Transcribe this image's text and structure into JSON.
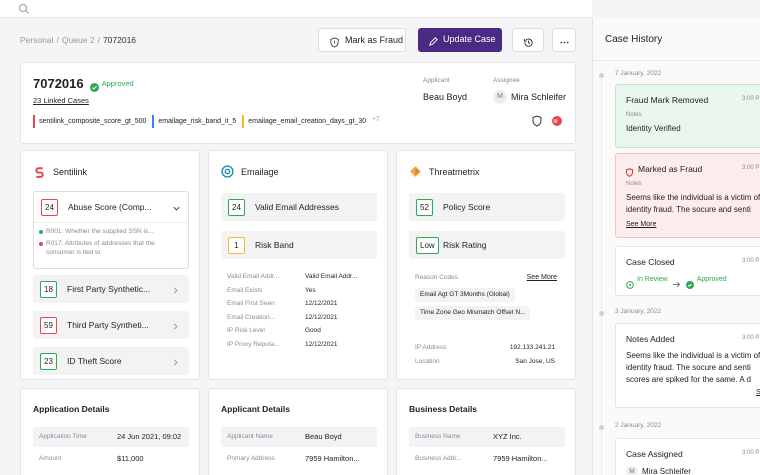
{
  "breadcrumb": {
    "items": [
      "Personal",
      "Queue 2",
      "7072016"
    ],
    "separator": "/"
  },
  "actions": {
    "fraud": "Mark as Fraud",
    "update": "Update Case"
  },
  "case": {
    "id": "7072016",
    "status": "Approved",
    "linked": "23 Linked Cases",
    "applicant_label": "Applicant",
    "applicant": "Beau Boyd",
    "assignee_label": "Assignee",
    "assignee_initial": "M",
    "assignee": "Mira Schleifer",
    "tags": [
      {
        "text": "sentilink_composite_score_gt_500",
        "color": "#e5484d"
      },
      {
        "text": "emailage_risk_band_it_5",
        "color": "#3b82f6"
      },
      {
        "text": "emailage_email_creation_days_gt_30",
        "color": "#f5b82e"
      }
    ],
    "more_tags": "+7"
  },
  "sentilink": {
    "title": "Sentilink",
    "expanded": {
      "score": "24",
      "name": "Abuse Score (Comp...",
      "color": "#e5484d",
      "reasons": [
        {
          "text": "R001: Whether the supplied SSN is...",
          "color": "#2fa84f"
        },
        {
          "text": "R017: Attributes of addresses that the consumer is tied to",
          "color": "#e5484d"
        }
      ]
    },
    "scores": [
      {
        "score": "18",
        "name": "First Party Synthetic...",
        "color": "#2fa84f"
      },
      {
        "score": "59",
        "name": "Third Party Syntheti...",
        "color": "#e5484d"
      },
      {
        "score": "23",
        "name": "ID Theft Score",
        "color": "#2fa84f"
      }
    ]
  },
  "emailage": {
    "title": "Emailage",
    "scores": [
      {
        "score": "24",
        "name": "Valid Email Addresses",
        "color": "#2fa84f"
      },
      {
        "score": "1",
        "name": "Risk Band",
        "color": "#f5b82e"
      }
    ],
    "rows": [
      [
        "Valid Email Addr...",
        "Valid Email Addr..."
      ],
      [
        "Email Exists",
        "Yes"
      ],
      [
        "Email First Seen",
        "12/12/2021"
      ],
      [
        "Email Creation...",
        "12/12/2021"
      ],
      [
        "IP Risk Level",
        "Good"
      ],
      [
        "IP Proxy Reputa...",
        "12/12/2021"
      ]
    ]
  },
  "threatmetrix": {
    "title": "Threatmetrix",
    "scores": [
      {
        "score": "52",
        "name": "Policy Score",
        "color": "#2fa84f"
      },
      {
        "score": "Low",
        "name": "Risk Rating",
        "color": "#2fa84f"
      }
    ],
    "reason_label": "Reason Codes",
    "see_more": "See More",
    "codes": [
      "Email Agt GT 3Months (Global)",
      "Time Zone Geo Mismatch Offset N..."
    ],
    "rows": [
      [
        "IP Address",
        "192.133.241.21"
      ],
      [
        "Location",
        "San Jose, US"
      ]
    ]
  },
  "details": [
    {
      "title": "Application Details",
      "rows": [
        [
          "Application Time",
          "24 Jun 2021, 09:02"
        ],
        [
          "Amount",
          "$11,000"
        ]
      ]
    },
    {
      "title": "Applicant Details",
      "rows": [
        [
          "Applicant Name",
          "Beau Boyd"
        ],
        [
          "Primary Address",
          "7959 Hamilton..."
        ]
      ]
    },
    {
      "title": "Business Details",
      "rows": [
        [
          "Business Name",
          "XYZ Inc."
        ],
        [
          "Business Addr...",
          "7959 Hamilton..."
        ]
      ]
    }
  ],
  "history": {
    "title": "Case History",
    "groups": [
      {
        "date": "7 January, 2022",
        "entries": [
          {
            "title": "Fraud Mark Removed",
            "time": "3:00 P",
            "notes_label": "Notes",
            "note": "Identity Verified"
          },
          {
            "title": "Marked as Fraud",
            "time": "3:00 P",
            "notes_label": "Notes",
            "note": "Seems like the individual is a victim of identity fraud. The socure and senti",
            "link": "See More"
          },
          {
            "title": "Case Closed",
            "time": "3:00 P",
            "from": "In Review",
            "to": "Approved"
          }
        ]
      },
      {
        "date": "3 January, 2022",
        "entries": [
          {
            "title": "Notes Added",
            "time": "3:00 P",
            "note": "Seems like the individual is a victim of identity fraud. The socure and senti scores are spiked for the same. A d",
            "link": "Se"
          }
        ]
      },
      {
        "date": "2 January, 2022",
        "entries": [
          {
            "title": "Case Assigned",
            "time": "3:00 P",
            "initial": "M",
            "assignee": "Mira Schleifer"
          }
        ]
      }
    ]
  }
}
